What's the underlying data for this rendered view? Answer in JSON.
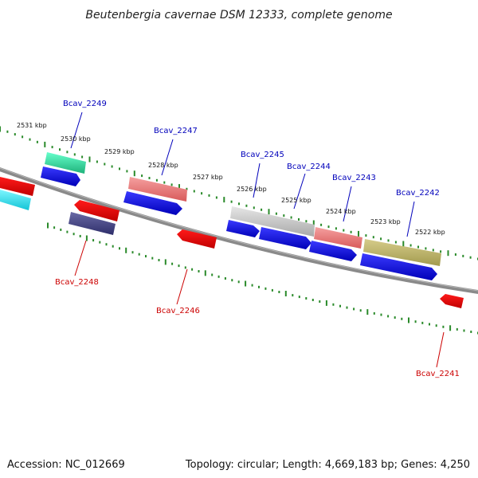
{
  "title": "Beutenbergia cavernae DSM 12333, complete genome",
  "footer": {
    "accession": "Accession: NC_012669",
    "summary": "Topology: circular; Length: 4,669,183 bp; Genes: 4,250"
  },
  "scale_labels": [
    "2531 kbp",
    "2530 kbp",
    "2529 kbp",
    "2528 kbp",
    "2527 kbp",
    "2526 kbp",
    "2525 kbp",
    "2524 kbp",
    "2523 kbp",
    "2522 kbp"
  ],
  "gene_labels": {
    "forward": [
      "Bcav_2249",
      "Bcav_2247",
      "Bcav_2245",
      "Bcav_2244",
      "Bcav_2243",
      "Bcav_2242"
    ],
    "reverse": [
      "Bcav_2248",
      "Bcav_2246",
      "Bcav_2241"
    ]
  },
  "colors": {
    "forward_label": "#0000bb",
    "reverse_label": "#cc0000",
    "cds_forward": "#0000ee",
    "cds_reverse": "#ee0000",
    "backbone": "#888888",
    "ticks": "#2a8a2a"
  }
}
